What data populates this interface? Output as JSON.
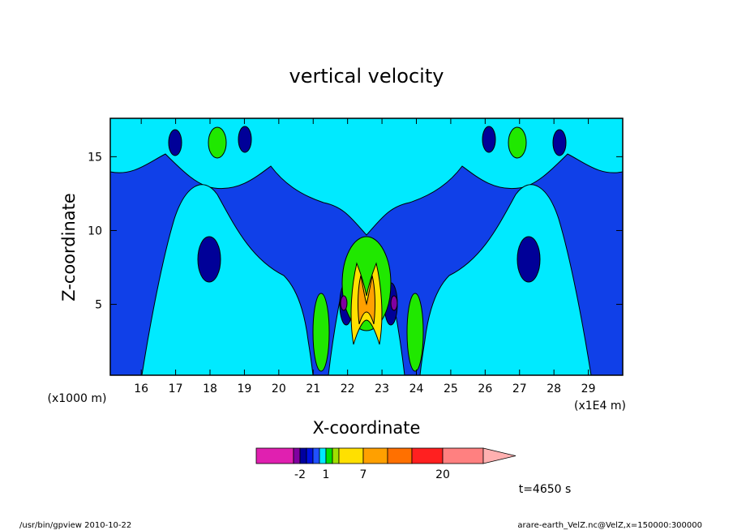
{
  "chart_data": {
    "type": "heatmap",
    "title": "vertical velocity",
    "xlabel": "X-coordinate",
    "ylabel": "Z-coordinate",
    "x_unit": "(x1E4 m)",
    "y_unit": "(x1000 m)",
    "xlim": [
      15.1,
      30.0
    ],
    "ylim": [
      0.2,
      17.6
    ],
    "x_ticks": [
      "16",
      "17",
      "18",
      "19",
      "20",
      "21",
      "22",
      "23",
      "24",
      "25",
      "26",
      "27",
      "28",
      "29"
    ],
    "y_ticks": [
      "5",
      "10",
      "15"
    ],
    "colorbar": {
      "labels": [
        {
          "text": "-2",
          "level": -2
        },
        {
          "text": "1",
          "level": 1
        },
        {
          "text": "7",
          "level": 7
        },
        {
          "text": "20",
          "level": 20
        }
      ],
      "colors": [
        "#e020b0",
        "#8000a0",
        "#0000a0",
        "#0010e0",
        "#2050ff",
        "#00e8ff",
        "#00e000",
        "#a0e000",
        "#ffe000",
        "#ffa000",
        "#ff7000",
        "#ff2020",
        "#ff8080",
        "#ffb0b0"
      ]
    },
    "time_label": "t=4650 s",
    "footer_left": "/usr/bin/gpview   2010-10-22",
    "footer_right": "arare-earth_VelZ.nc@VelZ,x=150000:300000"
  }
}
